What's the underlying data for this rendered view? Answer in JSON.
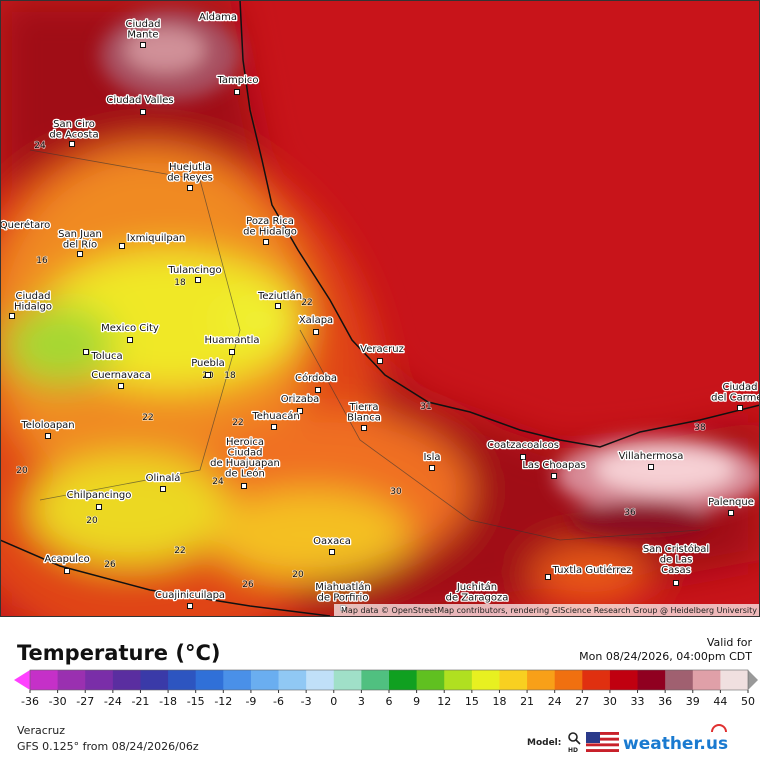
{
  "cities": [
    {
      "lines": [
        "Ciudad",
        "Mante"
      ]
    },
    {
      "lines": [
        "Aldama"
      ]
    },
    {
      "lines": [
        "Tampico"
      ]
    },
    {
      "lines": [
        "Ciudad Valles"
      ]
    },
    {
      "lines": [
        "San Ciro",
        "de Acosta"
      ]
    },
    {
      "lines": [
        "Huejutla",
        "de Reyes"
      ]
    },
    {
      "lines": [
        "Poza Rica",
        "de Hidalgo"
      ]
    },
    {
      "lines": [
        "Querétaro"
      ]
    },
    {
      "lines": [
        "San Juan",
        "del Río"
      ]
    },
    {
      "lines": [
        "Ixmiquilpan"
      ]
    },
    {
      "lines": [
        "Tulancingo"
      ]
    },
    {
      "lines": [
        "Teziutlán"
      ]
    },
    {
      "lines": [
        "Ciudad",
        "Hidalgo"
      ]
    },
    {
      "lines": [
        "Xalapa"
      ]
    },
    {
      "lines": [
        "Mexico City"
      ]
    },
    {
      "lines": [
        "Huamantla"
      ]
    },
    {
      "lines": [
        "Veracruz"
      ]
    },
    {
      "lines": [
        "Toluca"
      ]
    },
    {
      "lines": [
        "Puebla"
      ]
    },
    {
      "lines": [
        "Cuernavaca"
      ]
    },
    {
      "lines": [
        "Córdoba"
      ]
    },
    {
      "lines": [
        "Orizaba"
      ]
    },
    {
      "lines": [
        "Tierra",
        "Blanca"
      ]
    },
    {
      "lines": [
        "Tehuacán"
      ]
    },
    {
      "lines": [
        "Teloloapan"
      ]
    },
    {
      "lines": [
        "Heroica",
        "Ciudad",
        "de Huajuapan",
        "de León"
      ]
    },
    {
      "lines": [
        "Coatzacoalcos"
      ]
    },
    {
      "lines": [
        "Isla"
      ]
    },
    {
      "lines": [
        "Las Choapas"
      ]
    },
    {
      "lines": [
        "Villahermosa"
      ]
    },
    {
      "lines": [
        "Olinalá"
      ]
    },
    {
      "lines": [
        "Chilpancingo"
      ]
    },
    {
      "lines": [
        "Palenque"
      ]
    },
    {
      "lines": [
        "Oaxaca"
      ]
    },
    {
      "lines": [
        "San Cristóbal",
        "de Las",
        "Casas"
      ]
    },
    {
      "lines": [
        "Acapulco"
      ]
    },
    {
      "lines": [
        "Tuxtla Gutiérrez"
      ]
    },
    {
      "lines": [
        "Juchitán",
        "de Zaragoza"
      ]
    },
    {
      "lines": [
        "Miahuatlán",
        "de Porfirio"
      ]
    },
    {
      "lines": [
        "Cuajinicuilapa"
      ]
    },
    {
      "lines": [
        "Ciudad",
        "del Carmen"
      ]
    }
  ],
  "contour_labels": [
    24,
    16,
    18,
    22,
    20,
    18,
    22,
    22,
    24,
    20,
    20,
    22,
    26,
    26,
    20,
    30,
    31,
    36,
    38
  ],
  "attribution": "Map data © OpenStreetMap contributors, rendering GIScience Research Group @ Heidelberg University",
  "legend": {
    "title": "Temperature (°C)",
    "valid_label": "Valid for",
    "valid_time": "Mon 08/24/2026, 04:00pm CDT",
    "ticks": [
      -36,
      -30,
      -27,
      -24,
      -21,
      -18,
      -15,
      -12,
      -9,
      -6,
      -3,
      0,
      3,
      6,
      9,
      12,
      15,
      18,
      21,
      24,
      27,
      30,
      33,
      36,
      39,
      44,
      50
    ],
    "colors": [
      "#c530c8",
      "#9a30b0",
      "#7a2ea8",
      "#5a2ea0",
      "#3a3aa8",
      "#2d55c0",
      "#3070d8",
      "#4a90e8",
      "#6aaef0",
      "#90c8f4",
      "#c0e0f8",
      "#a0e0c8",
      "#50c080",
      "#10a020",
      "#60c020",
      "#b0e020",
      "#e8f020",
      "#f8d020",
      "#f8a018",
      "#f07010",
      "#e03010",
      "#c00010",
      "#900020",
      "#a06070",
      "#e0a0a8",
      "#f0e0e0"
    ],
    "low_color": "#ff40ff",
    "high_color": "#999999"
  },
  "footer": {
    "location": "Veracruz",
    "model_run": "GFS 0.125° from  08/24/2026/06z",
    "model_label": "Model:",
    "hd": "HD",
    "brand": "weather.us"
  }
}
